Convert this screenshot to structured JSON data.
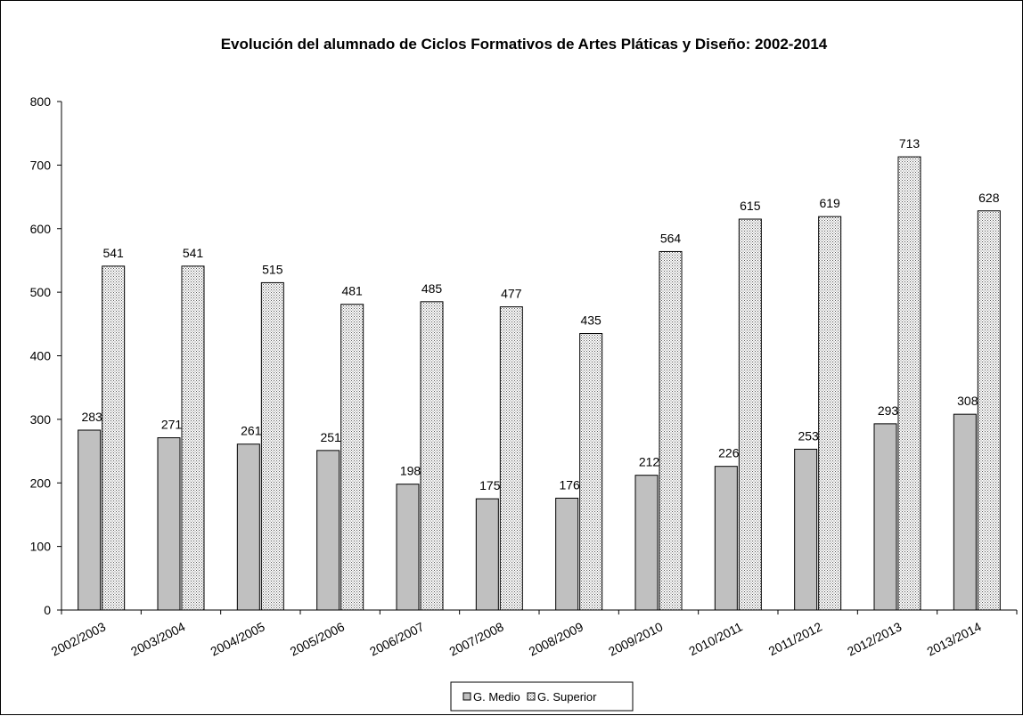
{
  "chart_data": {
    "type": "bar",
    "title": "Evolución del alumnado de Ciclos Formativos de Artes Pláticas y Diseño: 2002-2014",
    "xlabel": "",
    "ylabel": "",
    "ylim": [
      0,
      800
    ],
    "yticks": [
      "0",
      "100",
      "200",
      "300",
      "400",
      "500",
      "600",
      "700",
      "800"
    ],
    "categories": [
      "2002/2003",
      "2003/2004",
      "2004/2005",
      "2005/2006",
      "2006/2007",
      "2007/2008",
      "2008/2009",
      "2009/2010",
      "2010/2011",
      "2011/2012",
      "2012/2013",
      "2013/2014"
    ],
    "series": [
      {
        "name": "G. Medio",
        "color": "#c0c0c0",
        "fill": "solid",
        "values": [
          283,
          271,
          261,
          251,
          198,
          175,
          176,
          212,
          226,
          253,
          293,
          308
        ]
      },
      {
        "name": "G. Superior",
        "color": "#ffffff",
        "fill": "dotted",
        "values": [
          541,
          541,
          515,
          481,
          485,
          477,
          435,
          564,
          615,
          619,
          713,
          628
        ]
      }
    ],
    "grid": false,
    "legend_position": "bottom"
  }
}
